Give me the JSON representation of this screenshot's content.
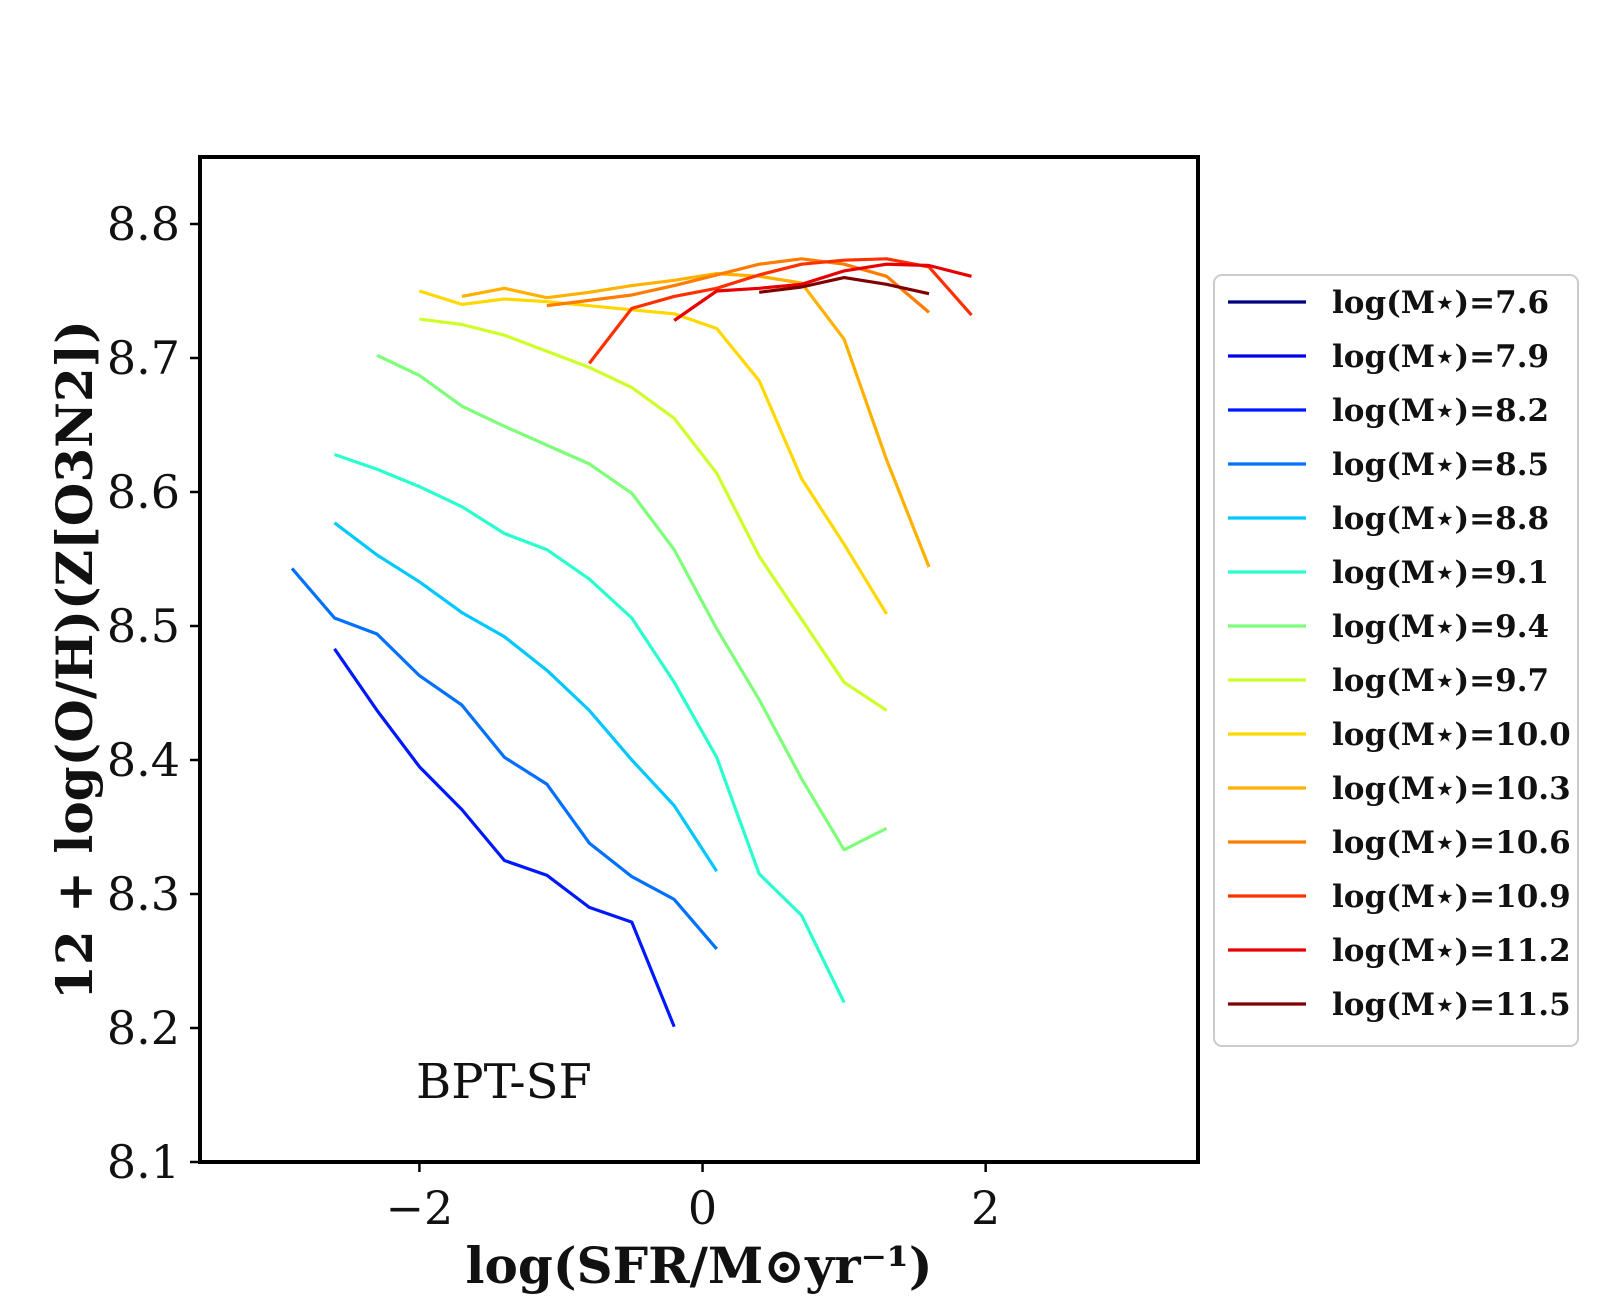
{
  "chart_data": {
    "type": "line",
    "xlabel": "log(SFR/M⊙yr⁻¹)",
    "ylabel": "12 + log(O/H)(Z[O3N2])",
    "xlim": [
      -3.55,
      3.5
    ],
    "ylim": [
      8.1,
      8.85
    ],
    "xticks": [
      -2,
      0,
      2
    ],
    "xtick_labels": [
      "−2",
      "0",
      "2"
    ],
    "yticks": [
      8.1,
      8.2,
      8.3,
      8.4,
      8.5,
      8.6,
      8.7,
      8.8
    ],
    "ytick_labels": [
      "8.1",
      "8.2",
      "8.3",
      "8.4",
      "8.5",
      "8.6",
      "8.7",
      "8.8"
    ],
    "annotation": "BPT-SF",
    "legend_position": "right-outside",
    "series": [
      {
        "name": "log(M⋆)=7.6",
        "color": "#00007f",
        "x": [],
        "y": []
      },
      {
        "name": "log(M⋆)=7.9",
        "color": "#0000e8",
        "x": [],
        "y": []
      },
      {
        "name": "log(M⋆)=8.2",
        "color": "#0018ff",
        "x": [
          -2.6,
          -2.3,
          -2.0,
          -1.7,
          -1.4,
          -1.1,
          -0.8,
          -0.5,
          -0.2
        ],
        "y": [
          8.483,
          8.437,
          8.395,
          8.363,
          8.325,
          8.314,
          8.29,
          8.279,
          8.201
        ]
      },
      {
        "name": "log(M⋆)=8.5",
        "color": "#0070ff",
        "x": [
          -2.9,
          -2.6,
          -2.3,
          -2.0,
          -1.7,
          -1.4,
          -1.1,
          -0.8,
          -0.5,
          -0.2,
          0.1
        ],
        "y": [
          8.543,
          8.506,
          8.494,
          8.463,
          8.441,
          8.402,
          8.382,
          8.338,
          8.313,
          8.296,
          8.259
        ]
      },
      {
        "name": "log(M⋆)=8.8",
        "color": "#00c8ff",
        "x": [
          -2.6,
          -2.3,
          -2.0,
          -1.7,
          -1.4,
          -1.1,
          -0.8,
          -0.5,
          -0.2,
          0.1
        ],
        "y": [
          8.577,
          8.553,
          8.533,
          8.51,
          8.492,
          8.467,
          8.437,
          8.4,
          8.366,
          8.317
        ]
      },
      {
        "name": "log(M⋆)=9.1",
        "color": "#29ffce",
        "x": [
          -2.6,
          -2.3,
          -2.0,
          -1.7,
          -1.4,
          -1.1,
          -0.8,
          -0.5,
          -0.2,
          0.1,
          0.4,
          0.7,
          1.0
        ],
        "y": [
          8.628,
          8.617,
          8.604,
          8.589,
          8.569,
          8.557,
          8.535,
          8.506,
          8.458,
          8.402,
          8.315,
          8.284,
          8.219
        ]
      },
      {
        "name": "log(M⋆)=9.4",
        "color": "#7dff7a",
        "x": [
          -2.3,
          -2.0,
          -1.7,
          -1.4,
          -1.1,
          -0.8,
          -0.5,
          -0.2,
          0.1,
          0.4,
          0.7,
          1.0,
          1.3
        ],
        "y": [
          8.702,
          8.687,
          8.664,
          8.649,
          8.635,
          8.621,
          8.599,
          8.557,
          8.498,
          8.445,
          8.386,
          8.333,
          8.349
        ]
      },
      {
        "name": "log(M⋆)=9.7",
        "color": "#ceff29",
        "x": [
          -2.0,
          -1.7,
          -1.4,
          -1.1,
          -0.8,
          -0.5,
          -0.2,
          0.1,
          0.4,
          0.7,
          1.0,
          1.3
        ],
        "y": [
          8.729,
          8.725,
          8.717,
          8.705,
          8.693,
          8.678,
          8.655,
          8.614,
          8.552,
          8.505,
          8.458,
          8.437
        ]
      },
      {
        "name": "log(M⋆)=10.0",
        "color": "#ffd800",
        "x": [
          -2.0,
          -1.7,
          -1.4,
          -1.1,
          -0.8,
          -0.5,
          -0.2,
          0.1,
          0.4,
          0.7,
          1.0,
          1.3
        ],
        "y": [
          8.75,
          8.74,
          8.744,
          8.742,
          8.739,
          8.736,
          8.733,
          8.722,
          8.683,
          8.61,
          8.561,
          8.509
        ]
      },
      {
        "name": "log(M⋆)=10.3",
        "color": "#ffb100",
        "x": [
          -1.7,
          -1.4,
          -1.1,
          -0.8,
          -0.5,
          -0.2,
          0.1,
          0.4,
          0.7,
          1.0,
          1.3,
          1.6
        ],
        "y": [
          8.746,
          8.752,
          8.745,
          8.749,
          8.754,
          8.758,
          8.763,
          8.761,
          8.756,
          8.714,
          8.624,
          8.544
        ]
      },
      {
        "name": "log(M⋆)=10.6",
        "color": "#ff7c00",
        "x": [
          -1.1,
          -0.8,
          -0.5,
          -0.2,
          0.1,
          0.4,
          0.7,
          1.0,
          1.3,
          1.6
        ],
        "y": [
          8.739,
          8.743,
          8.747,
          8.754,
          8.762,
          8.77,
          8.774,
          8.77,
          8.761,
          8.734
        ]
      },
      {
        "name": "log(M⋆)=10.9",
        "color": "#ff3000",
        "x": [
          -0.8,
          -0.5,
          -0.2,
          0.1,
          0.4,
          0.7,
          1.0,
          1.3,
          1.6,
          1.9
        ],
        "y": [
          8.696,
          8.737,
          8.746,
          8.752,
          8.762,
          8.77,
          8.773,
          8.774,
          8.768,
          8.732
        ]
      },
      {
        "name": "log(M⋆)=11.2",
        "color": "#e80000",
        "x": [
          -0.2,
          0.1,
          0.4,
          0.7,
          1.0,
          1.3,
          1.6,
          1.9
        ],
        "y": [
          8.728,
          8.75,
          8.752,
          8.755,
          8.765,
          8.77,
          8.769,
          8.761
        ]
      },
      {
        "name": "log(M⋆)=11.5",
        "color": "#7f0000",
        "x": [
          0.4,
          0.7,
          1.0,
          1.3,
          1.6
        ],
        "y": [
          8.749,
          8.753,
          8.76,
          8.755,
          8.748
        ]
      }
    ]
  }
}
